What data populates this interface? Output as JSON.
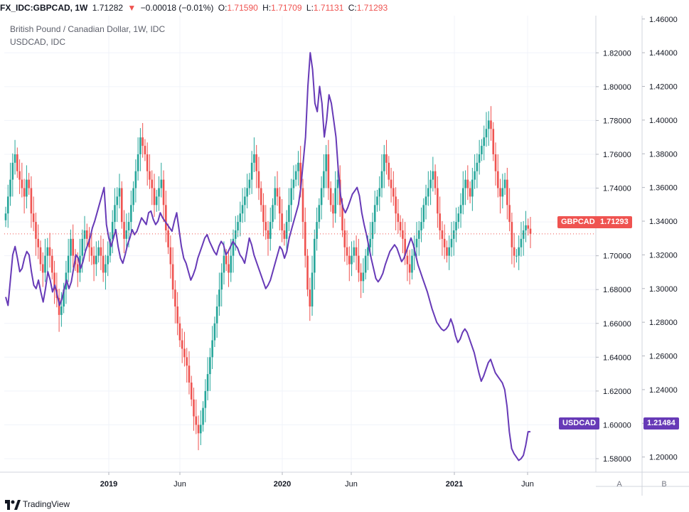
{
  "header": {
    "symbol": "FX_IDC:GBPCAD, 1W",
    "last": "1.71282",
    "change": "−0.00018 (−0.01%)",
    "o_label": "O:",
    "o": "1.71590",
    "h_label": "H:",
    "h": "1.71709",
    "l_label": "L:",
    "l": "1.71131",
    "c_label": "C:",
    "c": "1.71293"
  },
  "legend": {
    "main": "British Pound / Canadian Dollar, 1W, IDC",
    "compare": "USDCAD, IDC"
  },
  "price_tags": {
    "gbpcad_label": "GBPCAD",
    "gbpcad_value": "1.71293",
    "usdcad_label": "USDCAD",
    "usdcad_value": "1.21484"
  },
  "axis_buttons": {
    "a": "A",
    "b": "B"
  },
  "footer": {
    "brand": "TradingView"
  },
  "colors": {
    "up": "#26a69a",
    "down": "#ef5350",
    "compare": "#673ab7",
    "tag_gbp": "#ef5350",
    "tag_usd": "#673ab7"
  },
  "chart_data": {
    "type": "line",
    "x_ticks": [
      "2019",
      "Jun",
      "2020",
      "Jun",
      "2021",
      "Jun"
    ],
    "y_left_ticks": [
      "1.82000",
      "1.80000",
      "1.78000",
      "1.76000",
      "1.74000",
      "1.72000",
      "1.70000",
      "1.68000",
      "1.66000",
      "1.64000",
      "1.62000",
      "1.60000",
      "1.58000"
    ],
    "y_right_ticks": [
      "1.46000",
      "1.44000",
      "1.42000",
      "1.40000",
      "1.38000",
      "1.36000",
      "1.34000",
      "1.32000",
      "1.30000",
      "1.28000",
      "1.26000",
      "1.24000",
      "1.22000",
      "1.20000"
    ],
    "y_left_range": [
      1.572,
      1.842
    ],
    "y_right_range": [
      1.191,
      1.462
    ],
    "series": [
      {
        "name": "GBPCAD",
        "style": "candlestick",
        "closes": [
          1.725,
          1.735,
          1.745,
          1.755,
          1.76,
          1.75,
          1.745,
          1.74,
          1.735,
          1.745,
          1.74,
          1.725,
          1.72,
          1.71,
          1.705,
          1.695,
          1.69,
          1.7,
          1.705,
          1.7,
          1.69,
          1.68,
          1.675,
          1.665,
          1.67,
          1.68,
          1.69,
          1.7,
          1.71,
          1.7,
          1.695,
          1.69,
          1.7,
          1.71,
          1.715,
          1.71,
          1.705,
          1.7,
          1.695,
          1.7,
          1.705,
          1.7,
          1.69,
          1.695,
          1.7,
          1.71,
          1.72,
          1.73,
          1.735,
          1.74,
          1.72,
          1.71,
          1.715,
          1.72,
          1.73,
          1.74,
          1.75,
          1.76,
          1.77,
          1.765,
          1.76,
          1.75,
          1.745,
          1.74,
          1.73,
          1.735,
          1.74,
          1.745,
          1.73,
          1.715,
          1.705,
          1.695,
          1.68,
          1.67,
          1.66,
          1.65,
          1.645,
          1.64,
          1.635,
          1.625,
          1.615,
          1.605,
          1.6,
          1.595,
          1.6,
          1.61,
          1.62,
          1.63,
          1.64,
          1.65,
          1.66,
          1.67,
          1.68,
          1.69,
          1.7,
          1.695,
          1.69,
          1.7,
          1.71,
          1.715,
          1.72,
          1.725,
          1.73,
          1.735,
          1.74,
          1.745,
          1.755,
          1.76,
          1.75,
          1.74,
          1.73,
          1.72,
          1.715,
          1.71,
          1.72,
          1.73,
          1.74,
          1.735,
          1.725,
          1.715,
          1.71,
          1.72,
          1.73,
          1.74,
          1.745,
          1.75,
          1.755,
          1.74,
          1.72,
          1.7,
          1.68,
          1.67,
          1.69,
          1.71,
          1.72,
          1.73,
          1.74,
          1.75,
          1.76,
          1.74,
          1.73,
          1.725,
          1.74,
          1.745,
          1.73,
          1.715,
          1.705,
          1.7,
          1.695,
          1.7,
          1.705,
          1.7,
          1.69,
          1.685,
          1.69,
          1.7,
          1.705,
          1.71,
          1.72,
          1.73,
          1.735,
          1.74,
          1.75,
          1.76,
          1.755,
          1.745,
          1.74,
          1.735,
          1.725,
          1.72,
          1.715,
          1.71,
          1.7,
          1.695,
          1.69,
          1.7,
          1.705,
          1.71,
          1.715,
          1.72,
          1.73,
          1.735,
          1.74,
          1.745,
          1.75,
          1.74,
          1.725,
          1.715,
          1.71,
          1.705,
          1.7,
          1.705,
          1.71,
          1.715,
          1.72,
          1.725,
          1.73,
          1.74,
          1.745,
          1.74,
          1.735,
          1.745,
          1.75,
          1.755,
          1.76,
          1.765,
          1.77,
          1.775,
          1.78,
          1.775,
          1.76,
          1.75,
          1.74,
          1.735,
          1.74,
          1.745,
          1.73,
          1.72,
          1.705,
          1.7,
          1.7,
          1.705,
          1.71,
          1.715,
          1.718,
          1.716,
          1.713
        ]
      },
      {
        "name": "USDCAD",
        "style": "line",
        "values": [
          1.295,
          1.29,
          1.305,
          1.32,
          1.325,
          1.318,
          1.31,
          1.312,
          1.318,
          1.322,
          1.32,
          1.31,
          1.302,
          1.3,
          1.305,
          1.298,
          1.292,
          1.3,
          1.31,
          1.305,
          1.298,
          1.302,
          1.296,
          1.29,
          1.294,
          1.3,
          1.305,
          1.3,
          1.304,
          1.312,
          1.32,
          1.318,
          1.312,
          1.316,
          1.322,
          1.326,
          1.33,
          1.336,
          1.34,
          1.345,
          1.35,
          1.355,
          1.36,
          1.338,
          1.33,
          1.325,
          1.33,
          1.335,
          1.325,
          1.318,
          1.315,
          1.32,
          1.326,
          1.33,
          1.335,
          1.332,
          1.334,
          1.338,
          1.342,
          1.34,
          1.338,
          1.345,
          1.346,
          1.341,
          1.338,
          1.34,
          1.345,
          1.342,
          1.34,
          1.338,
          1.336,
          1.334,
          1.34,
          1.345,
          1.335,
          1.325,
          1.318,
          1.315,
          1.31,
          1.305,
          1.308,
          1.312,
          1.318,
          1.322,
          1.326,
          1.33,
          1.332,
          1.328,
          1.325,
          1.322,
          1.32,
          1.325,
          1.328,
          1.326,
          1.32,
          1.322,
          1.325,
          1.328,
          1.326,
          1.324,
          1.32,
          1.318,
          1.315,
          1.322,
          1.33,
          1.326,
          1.32,
          1.316,
          1.312,
          1.308,
          1.304,
          1.3,
          1.302,
          1.305,
          1.31,
          1.315,
          1.32,
          1.325,
          1.323,
          1.318,
          1.322,
          1.33,
          1.335,
          1.34,
          1.345,
          1.35,
          1.36,
          1.375,
          1.39,
          1.42,
          1.44,
          1.43,
          1.41,
          1.405,
          1.42,
          1.41,
          1.39,
          1.4,
          1.415,
          1.41,
          1.4,
          1.39,
          1.37,
          1.355,
          1.348,
          1.345,
          1.348,
          1.352,
          1.356,
          1.358,
          1.36,
          1.355,
          1.345,
          1.338,
          1.332,
          1.325,
          1.318,
          1.312,
          1.306,
          1.304,
          1.306,
          1.309,
          1.314,
          1.318,
          1.322,
          1.324,
          1.326,
          1.324,
          1.32,
          1.316,
          1.318,
          1.322,
          1.326,
          1.33,
          1.326,
          1.32,
          1.314,
          1.31,
          1.306,
          1.302,
          1.298,
          1.293,
          1.288,
          1.284,
          1.28,
          1.278,
          1.276,
          1.275,
          1.276,
          1.278,
          1.282,
          1.278,
          1.272,
          1.268,
          1.27,
          1.274,
          1.276,
          1.274,
          1.27,
          1.266,
          1.262,
          1.256,
          1.25,
          1.245,
          1.248,
          1.252,
          1.256,
          1.258,
          1.254,
          1.25,
          1.248,
          1.246,
          1.244,
          1.24,
          1.23,
          1.215,
          1.205,
          1.202,
          1.2,
          1.198,
          1.199,
          1.201,
          1.207,
          1.215,
          1.215
        ]
      }
    ]
  }
}
